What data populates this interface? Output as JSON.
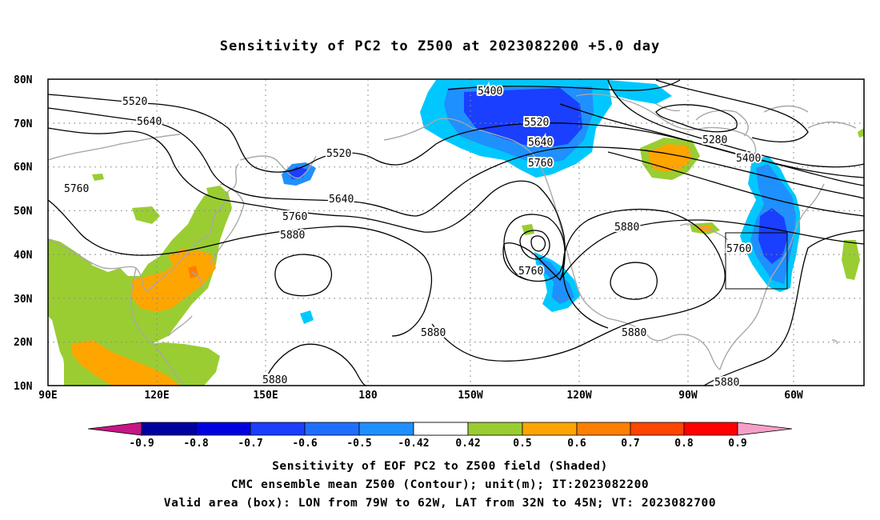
{
  "title": "Sensitivity of PC2 to Z500 at 2023082200 +5.0 day",
  "lat_labels": [
    "80N",
    "70N",
    "60N",
    "50N",
    "40N",
    "30N",
    "20N",
    "10N"
  ],
  "lon_labels": [
    "90E",
    "120E",
    "150E",
    "180",
    "150W",
    "120W",
    "90W",
    "60W"
  ],
  "contour_labels": [
    "5520",
    "5640",
    "5760",
    "5880",
    "5400",
    "5520",
    "5640",
    "5760",
    "5280",
    "5400",
    "5520",
    "5640",
    "5760",
    "5760",
    "5880",
    "5880",
    "5880",
    "5880",
    "5760",
    "5880"
  ],
  "colorbar": {
    "ticks": [
      "-0.9",
      "-0.8",
      "-0.7",
      "-0.6",
      "-0.5",
      "-0.42",
      "0.42",
      "0.5",
      "0.6",
      "0.7",
      "0.8",
      "0.9"
    ],
    "colors": [
      "#c71585",
      "#0000a0",
      "#0000e0",
      "#1a3fff",
      "#1f6fff",
      "#1e90ff",
      "#00c8ff",
      "#ffffff",
      "#9acd32",
      "#ffa500",
      "#ff7f00",
      "#ff4500",
      "#ff0000",
      "#f5a0c8"
    ]
  },
  "captions": {
    "line1": "Sensitivity of EOF PC2 to Z500 field (Shaded)",
    "line2": "CMC ensemble mean Z500 (Contour); unit(m); IT:2023082200",
    "line3": "Valid area (box): LON from 79W to 62W, LAT from 32N to 45N; VT: 2023082700"
  }
}
